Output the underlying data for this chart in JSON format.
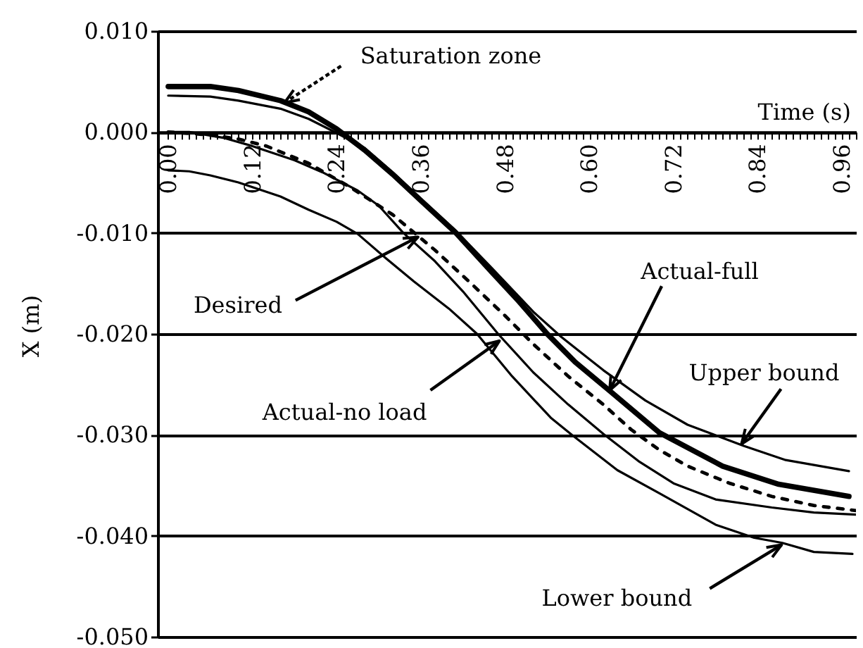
{
  "chart_data": {
    "type": "line",
    "xlabel": "Time (s)",
    "ylabel": "X (m)",
    "xlim": [
      -0.015,
      0.98
    ],
    "ylim": [
      -0.05,
      0.01
    ],
    "xticks": [
      {
        "value": 0,
        "label": "0.00"
      },
      {
        "value": 0.01,
        "label": null
      },
      {
        "value": 0.02,
        "label": null
      },
      {
        "value": 0.03,
        "label": null
      },
      {
        "value": 0.04,
        "label": null
      },
      {
        "value": 0.05,
        "label": null
      },
      {
        "value": 0.06,
        "label": null
      },
      {
        "value": 0.07,
        "label": null
      },
      {
        "value": 0.08,
        "label": null
      },
      {
        "value": 0.09,
        "label": null
      },
      {
        "value": 0.1,
        "label": null
      },
      {
        "value": 0.11,
        "label": null
      },
      0.12,
      {
        "value": 0.13,
        "label": null
      },
      {
        "value": 0.14,
        "label": null
      },
      {
        "value": 0.15,
        "label": null
      },
      {
        "value": 0.16,
        "label": null
      },
      {
        "value": 0.17,
        "label": null
      },
      {
        "value": 0.18,
        "label": null
      },
      {
        "value": 0.19,
        "label": null
      },
      {
        "value": 0.2,
        "label": null
      },
      {
        "value": 0.21,
        "label": null
      },
      {
        "value": 0.22,
        "label": null
      },
      {
        "value": 0.23,
        "label": null
      },
      0.24,
      {
        "value": 0.25,
        "label": null
      },
      {
        "value": 0.26,
        "label": null
      },
      {
        "value": 0.27,
        "label": null
      },
      {
        "value": 0.28,
        "label": null
      },
      {
        "value": 0.29,
        "label": null
      },
      {
        "value": 0.3,
        "label": null
      },
      {
        "value": 0.31,
        "label": null
      },
      {
        "value": 0.32,
        "label": null
      },
      {
        "value": 0.33,
        "label": null
      },
      {
        "value": 0.34,
        "label": null
      },
      {
        "value": 0.35,
        "label": null
      },
      0.36,
      {
        "value": 0.37,
        "label": null
      },
      {
        "value": 0.38,
        "label": null
      },
      {
        "value": 0.39,
        "label": null
      },
      {
        "value": 0.4,
        "label": null
      },
      {
        "value": 0.41,
        "label": null
      },
      {
        "value": 0.42,
        "label": null
      },
      {
        "value": 0.43,
        "label": null
      },
      {
        "value": 0.44,
        "label": null
      },
      {
        "value": 0.45,
        "label": null
      },
      {
        "value": 0.46,
        "label": null
      },
      {
        "value": 0.47,
        "label": null
      },
      0.48,
      {
        "value": 0.49,
        "label": null
      },
      {
        "value": 0.5,
        "label": null
      },
      {
        "value": 0.51,
        "label": null
      },
      {
        "value": 0.52,
        "label": null
      },
      {
        "value": 0.53,
        "label": null
      },
      {
        "value": 0.54,
        "label": null
      },
      {
        "value": 0.55,
        "label": null
      },
      {
        "value": 0.56,
        "label": null
      },
      {
        "value": 0.57,
        "label": null
      },
      {
        "value": 0.58,
        "label": null
      },
      {
        "value": 0.59,
        "label": null
      },
      {
        "value": 0.6,
        "label": "0.60"
      },
      {
        "value": 0.61,
        "label": null
      },
      {
        "value": 0.62,
        "label": null
      },
      {
        "value": 0.63,
        "label": null
      },
      {
        "value": 0.64,
        "label": null
      },
      {
        "value": 0.65,
        "label": null
      },
      {
        "value": 0.66,
        "label": null
      },
      {
        "value": 0.67,
        "label": null
      },
      {
        "value": 0.68,
        "label": null
      },
      {
        "value": 0.69,
        "label": null
      },
      {
        "value": 0.7,
        "label": null
      },
      {
        "value": 0.71,
        "label": null
      },
      0.72,
      {
        "value": 0.73,
        "label": null
      },
      {
        "value": 0.74,
        "label": null
      },
      {
        "value": 0.75,
        "label": null
      },
      {
        "value": 0.76,
        "label": null
      },
      {
        "value": 0.77,
        "label": null
      },
      {
        "value": 0.78,
        "label": null
      },
      {
        "value": 0.79,
        "label": null
      },
      {
        "value": 0.8,
        "label": null
      },
      {
        "value": 0.81,
        "label": null
      },
      {
        "value": 0.82,
        "label": null
      },
      {
        "value": 0.83,
        "label": null
      },
      0.84,
      {
        "value": 0.85,
        "label": null
      },
      {
        "value": 0.86,
        "label": null
      },
      {
        "value": 0.87,
        "label": null
      },
      {
        "value": 0.88,
        "label": null
      },
      {
        "value": 0.89,
        "label": null
      },
      {
        "value": 0.9,
        "label": null
      },
      {
        "value": 0.91,
        "label": null
      },
      {
        "value": 0.92,
        "label": null
      },
      {
        "value": 0.93,
        "label": null
      },
      {
        "value": 0.94,
        "label": null
      },
      {
        "value": 0.95,
        "label": null
      },
      0.96,
      {
        "value": 0.97,
        "label": null
      },
      {
        "value": 0.98,
        "label": null
      }
    ],
    "yticks": [
      {
        "value": 0.01,
        "label": "0.010"
      },
      {
        "value": 0,
        "label": "0.000"
      },
      {
        "value": -0.01,
        "label": "-0.010"
      },
      {
        "value": -0.02,
        "label": "-0.020"
      },
      {
        "value": -0.03,
        "label": "-0.030"
      },
      {
        "value": -0.04,
        "label": "-0.040"
      },
      {
        "value": -0.05,
        "label": "-0.050"
      }
    ],
    "grid": "y",
    "series": [
      {
        "color": "#000000",
        "line_style": "solid",
        "x": [
          0,
          0.06,
          0.1,
          0.16,
          0.2,
          0.24,
          0.28,
          0.32,
          0.36,
          0.41,
          0.46,
          0.52,
          0.56,
          0.62,
          0.68,
          0.74,
          0.82,
          0.88,
          0.97
        ],
        "values": [
          0.0036,
          0.0035,
          0.0031,
          0.0023,
          0.0013,
          -0.0001,
          -0.0016,
          -0.004,
          -0.0066,
          -0.0098,
          -0.0134,
          -0.0178,
          -0.0203,
          -0.0236,
          -0.0266,
          -0.029,
          -0.0311,
          -0.0325,
          -0.0336
        ]
      },
      {
        "color": "#000000",
        "line_style": "solid",
        "x": [
          0,
          0.06,
          0.1,
          0.16,
          0.2,
          0.24,
          0.28,
          0.32,
          0.36,
          0.41,
          0.46,
          0.5,
          0.54,
          0.58,
          0.63,
          0.7,
          0.79,
          0.87,
          0.97
        ],
        "values": [
          0.0045,
          0.0045,
          0.0041,
          0.0031,
          0.002,
          0.0003,
          -0.0018,
          -0.0042,
          -0.0068,
          -0.01,
          -0.0138,
          -0.0168,
          -0.02,
          -0.0228,
          -0.0257,
          -0.0298,
          -0.0331,
          -0.0349,
          -0.0361
        ]
      },
      {
        "color": "#000000",
        "line_style": "dashed",
        "x": [
          0,
          0.06,
          0.1,
          0.14,
          0.2,
          0.26,
          0.32,
          0.38,
          0.43,
          0.48,
          0.52,
          0.57,
          0.62,
          0.66,
          0.7,
          0.74,
          0.8,
          0.86,
          0.92,
          0.98
        ],
        "values": [
          0,
          -0.0003,
          -0.0007,
          -0.0014,
          -0.0031,
          -0.0055,
          -0.0082,
          -0.0117,
          -0.0149,
          -0.0182,
          -0.021,
          -0.0242,
          -0.027,
          -0.0295,
          -0.0315,
          -0.0331,
          -0.0348,
          -0.0361,
          -0.037,
          -0.0375
        ]
      },
      {
        "color": "#000000",
        "line_style": "solid",
        "x": [
          0,
          0.03,
          0.08,
          0.12,
          0.18,
          0.22,
          0.27,
          0.3,
          0.335,
          0.38,
          0.42,
          0.47,
          0.52,
          0.57,
          0.62,
          0.67,
          0.72,
          0.78,
          0.86,
          0.92,
          0.98
        ],
        "values": [
          0,
          0,
          -0.0006,
          -0.0014,
          -0.0028,
          -0.004,
          -0.0058,
          -0.0073,
          -0.01,
          -0.0128,
          -0.0158,
          -0.02,
          -0.0238,
          -0.027,
          -0.0299,
          -0.0326,
          -0.0348,
          -0.0364,
          -0.0372,
          -0.0377,
          -0.0379
        ]
      },
      {
        "color": "#000000",
        "line_style": "solid",
        "x": [
          0,
          0.03,
          0.06,
          0.1,
          0.16,
          0.2,
          0.24,
          0.27,
          0.31,
          0.35,
          0.4,
          0.44,
          0.49,
          0.545,
          0.575,
          0.64,
          0.7,
          0.78,
          0.835,
          0.875,
          0.92,
          0.975
        ],
        "values": [
          -0.0038,
          -0.0039,
          -0.0043,
          -0.005,
          -0.0064,
          -0.0077,
          -0.0089,
          -0.0101,
          -0.0125,
          -0.0148,
          -0.0175,
          -0.02,
          -0.0242,
          -0.0283,
          -0.03,
          -0.0335,
          -0.0358,
          -0.0389,
          -0.0402,
          -0.0407,
          -0.0416,
          -0.0418
        ]
      }
    ],
    "annotations": [
      {
        "text": "Saturation zone",
        "x": 0.166,
        "y": 0.0029
      },
      {
        "text": "Desired",
        "x": 0.356,
        "y": -0.0104
      },
      {
        "text": "Actual-no load",
        "x": 0.472,
        "y": -0.0207
      },
      {
        "text": "Actual-full",
        "x": 0.629,
        "y": -0.0256
      },
      {
        "text": "Upper bound",
        "x": 0.817,
        "y": -0.0309
      },
      {
        "text": "Lower bound",
        "x": 0.874,
        "y": -0.0409
      }
    ]
  }
}
